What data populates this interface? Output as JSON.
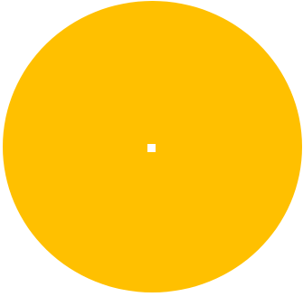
{
  "colors": {
    "background": "#ffffff",
    "circle_fill": "#ffc000",
    "center_marker": "#ffffff"
  },
  "shapes": {
    "main": "filled-circle",
    "center": "small-square"
  }
}
